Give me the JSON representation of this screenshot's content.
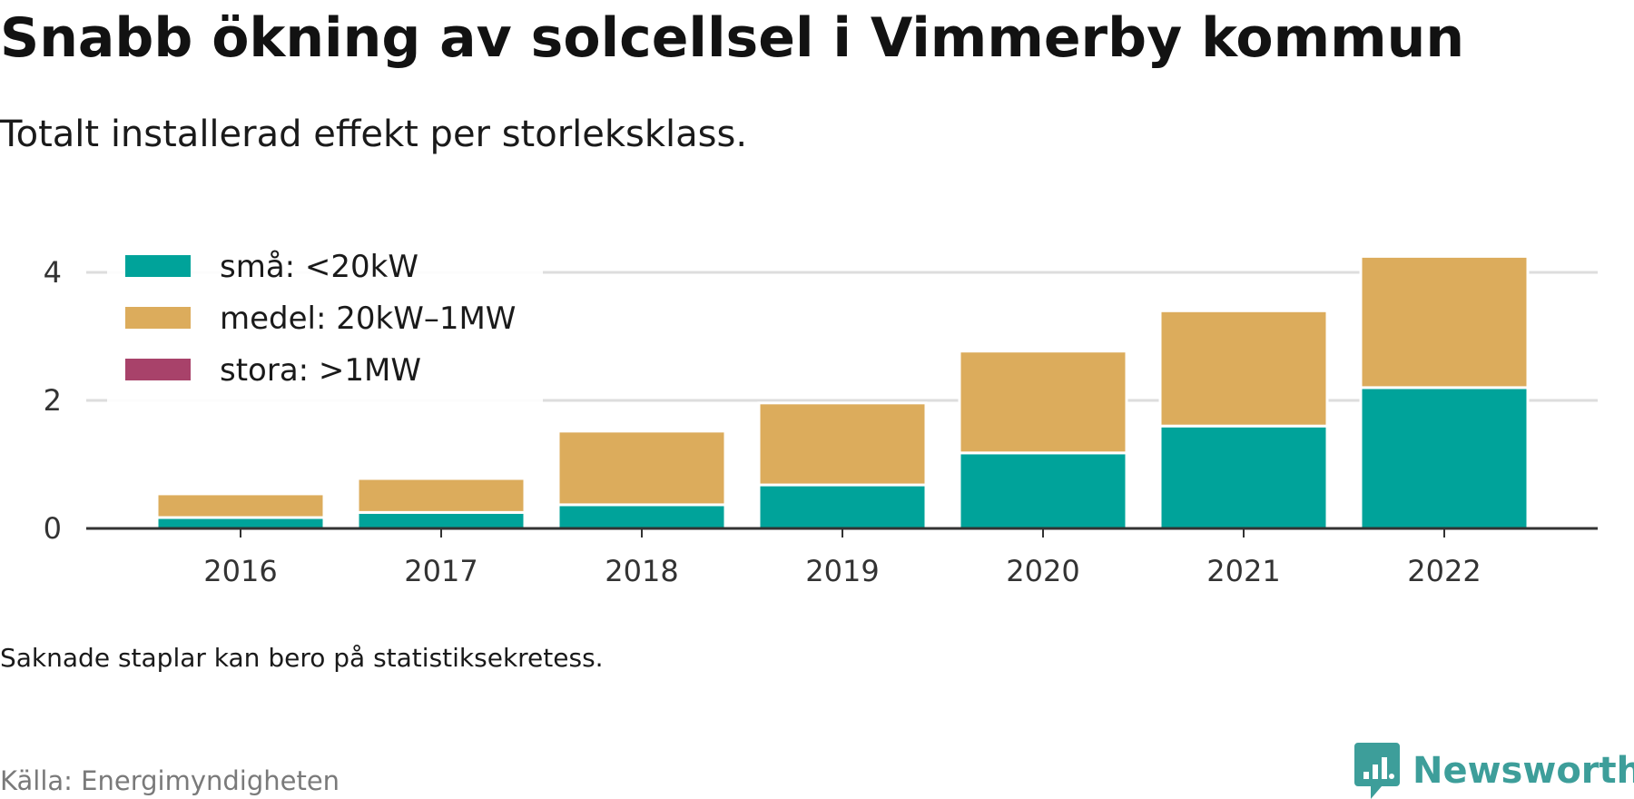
{
  "header": {
    "title": "Snabb ökning av solcellsel i Vimmerby kommun",
    "subtitle": "Totalt installerad effekt per storleksklass."
  },
  "footer": {
    "note": "Saknade staplar kan bero på statistiksekretess.",
    "source": "Källa: Energimyndigheten",
    "brand": "Newsworthy",
    "brand_icon": "newsworthy-logo-icon"
  },
  "colors": {
    "sma": "#00a39a",
    "medel": "#dcac5c",
    "stora": "#a8426a",
    "grid": "#dddddd",
    "axis": "#333333",
    "brand": "#3d9e9a"
  },
  "chart_data": {
    "type": "bar",
    "stacked": true,
    "categories": [
      "2016",
      "2017",
      "2018",
      "2019",
      "2020",
      "2021",
      "2022"
    ],
    "series": [
      {
        "name": "små: <20kW",
        "color": "#00a39a",
        "values": [
          0.17,
          0.25,
          0.37,
          0.68,
          1.18,
          1.6,
          2.2
        ]
      },
      {
        "name": "medel: 20kW–1MW",
        "color": "#dcac5c",
        "values": [
          0.37,
          0.53,
          1.15,
          1.28,
          1.59,
          1.8,
          2.05
        ]
      },
      {
        "name": "stora: >1MW",
        "color": "#a8426a",
        "values": [
          0,
          0,
          0,
          0,
          0,
          0,
          0
        ]
      }
    ],
    "yticks": [
      0,
      2,
      4
    ],
    "ylim": [
      0,
      4.45
    ],
    "grid": true,
    "legend_position": "top-left",
    "xlabel": "",
    "ylabel": ""
  }
}
